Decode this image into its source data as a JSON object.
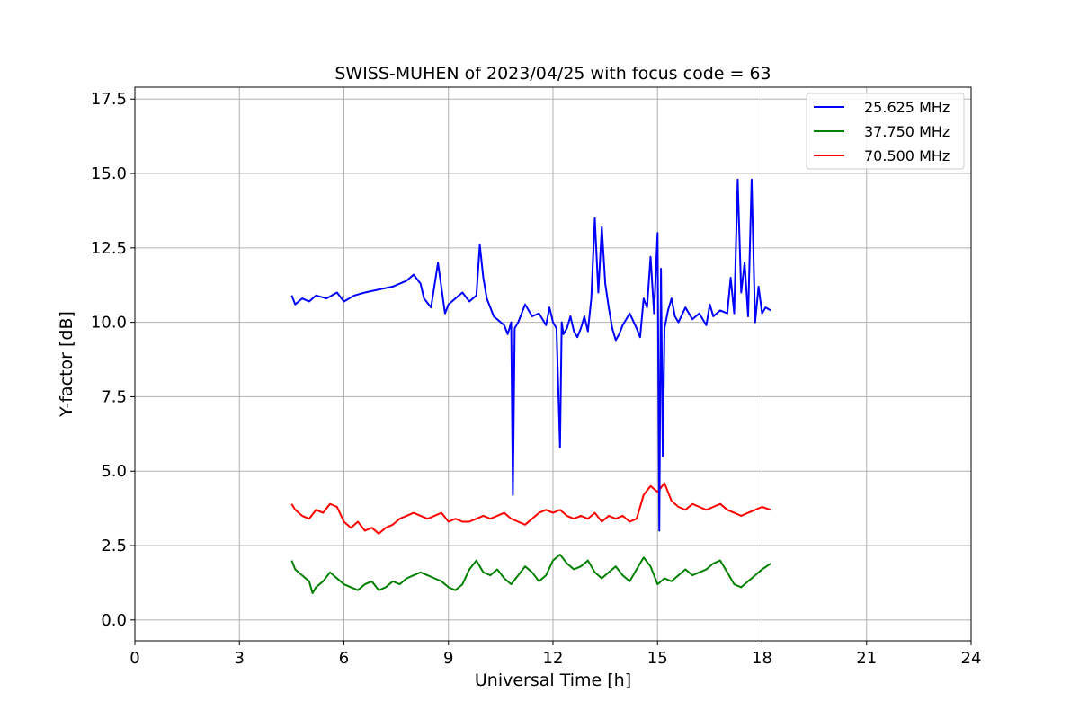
{
  "chart_data": {
    "type": "line",
    "title": "SWISS-MUHEN of 2023/04/25 with focus code = 63",
    "xlabel": "Universal Time [h]",
    "ylabel": "Y-factor [dB]",
    "xlim": [
      0,
      24
    ],
    "ylim": [
      -0.7,
      17.9
    ],
    "xticks": [
      0,
      3,
      6,
      9,
      12,
      15,
      18,
      21,
      24
    ],
    "xtick_labels": [
      "0",
      "3",
      "6",
      "9",
      "12",
      "15",
      "18",
      "21",
      "24"
    ],
    "yticks": [
      0,
      2.5,
      5,
      7.5,
      10,
      12.5,
      15,
      17.5
    ],
    "ytick_labels": [
      "0.0",
      "2.5",
      "5.0",
      "7.5",
      "10.0",
      "12.5",
      "15.0",
      "17.5"
    ],
    "grid": true,
    "legend_position": "top-right",
    "series": [
      {
        "name": "25.625 MHz",
        "color": "#0000ff",
        "x": [
          4.5,
          4.6,
          4.8,
          5.0,
          5.2,
          5.5,
          5.8,
          6.0,
          6.3,
          6.6,
          7.0,
          7.4,
          7.8,
          8.0,
          8.2,
          8.3,
          8.5,
          8.7,
          8.9,
          9.0,
          9.2,
          9.4,
          9.6,
          9.8,
          9.9,
          10.0,
          10.1,
          10.2,
          10.3,
          10.5,
          10.6,
          10.7,
          10.8,
          10.85,
          10.9,
          11.0,
          11.2,
          11.4,
          11.6,
          11.8,
          11.9,
          12.0,
          12.1,
          12.2,
          12.25,
          12.3,
          12.4,
          12.5,
          12.6,
          12.7,
          12.8,
          12.9,
          13.0,
          13.1,
          13.2,
          13.3,
          13.4,
          13.5,
          13.6,
          13.7,
          13.8,
          13.9,
          14.0,
          14.2,
          14.4,
          14.5,
          14.6,
          14.7,
          14.8,
          14.9,
          15.0,
          15.05,
          15.1,
          15.15,
          15.2,
          15.3,
          15.4,
          15.5,
          15.6,
          15.8,
          16.0,
          16.2,
          16.4,
          16.5,
          16.6,
          16.8,
          17.0,
          17.1,
          17.2,
          17.3,
          17.4,
          17.5,
          17.6,
          17.7,
          17.8,
          17.9,
          18.0,
          18.1,
          18.25
        ],
        "values": [
          10.9,
          10.6,
          10.8,
          10.7,
          10.9,
          10.8,
          11.0,
          10.7,
          10.9,
          11.0,
          11.1,
          11.2,
          11.4,
          11.6,
          11.3,
          10.8,
          10.5,
          12.0,
          10.3,
          10.6,
          10.8,
          11.0,
          10.7,
          10.9,
          12.6,
          11.5,
          10.8,
          10.5,
          10.2,
          10.0,
          9.9,
          9.6,
          10.0,
          4.2,
          9.8,
          10.0,
          10.6,
          10.2,
          10.3,
          9.9,
          10.5,
          10.0,
          9.8,
          5.8,
          10.0,
          9.6,
          9.8,
          10.2,
          9.7,
          9.5,
          9.8,
          10.2,
          9.7,
          10.8,
          13.5,
          11.0,
          13.2,
          11.3,
          10.5,
          9.8,
          9.4,
          9.6,
          9.9,
          10.3,
          9.8,
          9.5,
          10.8,
          10.5,
          12.2,
          10.3,
          13.0,
          3.0,
          11.8,
          5.5,
          9.8,
          10.4,
          10.8,
          10.2,
          10.0,
          10.5,
          10.1,
          10.3,
          9.9,
          10.6,
          10.2,
          10.4,
          10.3,
          11.5,
          10.3,
          14.8,
          11.0,
          12.0,
          10.2,
          14.8,
          10.0,
          11.2,
          10.3,
          10.5,
          10.4
        ]
      },
      {
        "name": "37.750 MHz",
        "color": "#008000",
        "x": [
          4.5,
          4.6,
          4.8,
          5.0,
          5.1,
          5.2,
          5.4,
          5.6,
          5.8,
          6.0,
          6.2,
          6.4,
          6.6,
          6.8,
          7.0,
          7.2,
          7.4,
          7.6,
          7.8,
          8.0,
          8.2,
          8.4,
          8.6,
          8.8,
          9.0,
          9.2,
          9.4,
          9.6,
          9.8,
          10.0,
          10.2,
          10.4,
          10.6,
          10.8,
          11.0,
          11.2,
          11.4,
          11.6,
          11.8,
          12.0,
          12.2,
          12.4,
          12.6,
          12.8,
          13.0,
          13.2,
          13.4,
          13.6,
          13.8,
          14.0,
          14.2,
          14.4,
          14.6,
          14.8,
          15.0,
          15.2,
          15.4,
          15.6,
          15.8,
          16.0,
          16.2,
          16.4,
          16.6,
          16.8,
          17.0,
          17.2,
          17.4,
          17.6,
          17.8,
          18.0,
          18.25
        ],
        "values": [
          2.0,
          1.7,
          1.5,
          1.3,
          0.9,
          1.1,
          1.3,
          1.6,
          1.4,
          1.2,
          1.1,
          1.0,
          1.2,
          1.3,
          1.0,
          1.1,
          1.3,
          1.2,
          1.4,
          1.5,
          1.6,
          1.5,
          1.4,
          1.3,
          1.1,
          1.0,
          1.2,
          1.7,
          2.0,
          1.6,
          1.5,
          1.7,
          1.4,
          1.2,
          1.5,
          1.8,
          1.6,
          1.3,
          1.5,
          2.0,
          2.2,
          1.9,
          1.7,
          1.8,
          2.0,
          1.6,
          1.4,
          1.6,
          1.8,
          1.5,
          1.3,
          1.7,
          2.1,
          1.8,
          1.2,
          1.4,
          1.3,
          1.5,
          1.7,
          1.5,
          1.6,
          1.7,
          1.9,
          2.0,
          1.6,
          1.2,
          1.1,
          1.3,
          1.5,
          1.7,
          1.9
        ]
      },
      {
        "name": "70.500 MHz",
        "color": "#ff0000",
        "x": [
          4.5,
          4.6,
          4.8,
          5.0,
          5.2,
          5.4,
          5.6,
          5.8,
          6.0,
          6.2,
          6.4,
          6.6,
          6.8,
          7.0,
          7.2,
          7.4,
          7.6,
          7.8,
          8.0,
          8.2,
          8.4,
          8.6,
          8.8,
          9.0,
          9.2,
          9.4,
          9.6,
          9.8,
          10.0,
          10.2,
          10.4,
          10.6,
          10.8,
          11.0,
          11.2,
          11.4,
          11.6,
          11.8,
          12.0,
          12.2,
          12.4,
          12.6,
          12.8,
          13.0,
          13.2,
          13.4,
          13.6,
          13.8,
          14.0,
          14.2,
          14.4,
          14.6,
          14.8,
          15.0,
          15.2,
          15.4,
          15.6,
          15.8,
          16.0,
          16.2,
          16.4,
          16.6,
          16.8,
          17.0,
          17.2,
          17.4,
          17.6,
          17.8,
          18.0,
          18.25
        ],
        "values": [
          3.9,
          3.7,
          3.5,
          3.4,
          3.7,
          3.6,
          3.9,
          3.8,
          3.3,
          3.1,
          3.3,
          3.0,
          3.1,
          2.9,
          3.1,
          3.2,
          3.4,
          3.5,
          3.6,
          3.5,
          3.4,
          3.5,
          3.6,
          3.3,
          3.4,
          3.3,
          3.3,
          3.4,
          3.5,
          3.4,
          3.5,
          3.6,
          3.4,
          3.3,
          3.2,
          3.4,
          3.6,
          3.7,
          3.6,
          3.7,
          3.5,
          3.4,
          3.5,
          3.4,
          3.6,
          3.3,
          3.5,
          3.4,
          3.5,
          3.3,
          3.4,
          4.2,
          4.5,
          4.3,
          4.6,
          4.0,
          3.8,
          3.7,
          3.9,
          3.8,
          3.7,
          3.8,
          3.9,
          3.7,
          3.6,
          3.5,
          3.6,
          3.7,
          3.8,
          3.7
        ]
      }
    ]
  }
}
